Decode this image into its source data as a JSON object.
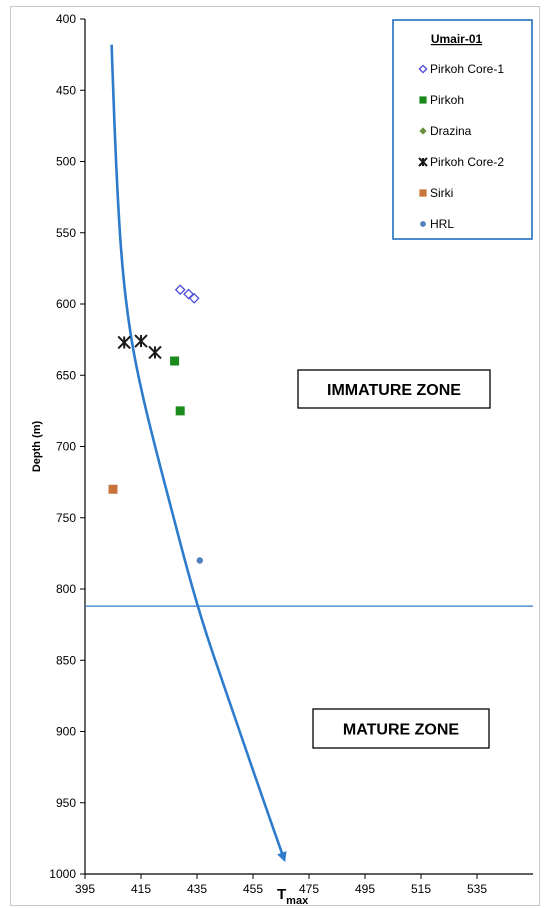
{
  "chart_data": {
    "type": "scatter",
    "xlabel": "T",
    "xlabel_sub": "max",
    "ylabel": "Depth (m)",
    "xlim": [
      395,
      555
    ],
    "ylim": [
      1000,
      400
    ],
    "y_inverted": true,
    "x_ticks": [
      395,
      415,
      435,
      455,
      475,
      495,
      515,
      535
    ],
    "y_ticks": [
      400,
      450,
      500,
      550,
      600,
      650,
      700,
      750,
      800,
      850,
      900,
      950,
      1000
    ],
    "grid": false,
    "legend": {
      "title": "Umair-01",
      "placement": "top-right",
      "border_color": "#1f6fbf"
    },
    "series": [
      {
        "name": "Pirkoh Core-1",
        "marker": "diamond-open",
        "color": "#4a4adb",
        "x": [
          429,
          432,
          434
        ],
        "y": [
          590,
          593,
          596
        ]
      },
      {
        "name": "Pirkoh",
        "marker": "square",
        "color": "#1a8a1a",
        "x": [
          427,
          429
        ],
        "y": [
          640,
          675
        ]
      },
      {
        "name": "Drazina",
        "marker": "diamond",
        "color": "#6b8e3a",
        "x": [],
        "y": []
      },
      {
        "name": "Pirkoh Core-2",
        "marker": "asterisk",
        "color": "#1a1a1a",
        "x": [
          409,
          415,
          420
        ],
        "y": [
          627,
          626,
          634
        ]
      },
      {
        "name": "Sirki",
        "marker": "square",
        "color": "#c8733a",
        "x": [
          405
        ],
        "y": [
          730
        ]
      },
      {
        "name": "HRL",
        "marker": "circle",
        "color": "#4f7fbf",
        "x": [
          436
        ],
        "y": [
          780
        ]
      }
    ],
    "trend_curve": {
      "color": "#2c7bcc",
      "x": [
        404.5,
        406,
        408,
        411,
        415,
        420,
        426,
        432,
        438,
        445,
        452,
        459,
        466
      ],
      "y": [
        418,
        500,
        570,
        620,
        660,
        700,
        745,
        790,
        830,
        870,
        910,
        950,
        989
      ]
    },
    "boundary_line": {
      "depth": 812,
      "color": "#2c7bcc"
    },
    "annotations": {
      "immature": "IMMATURE ZONE",
      "mature": "MATURE ZONE"
    }
  }
}
